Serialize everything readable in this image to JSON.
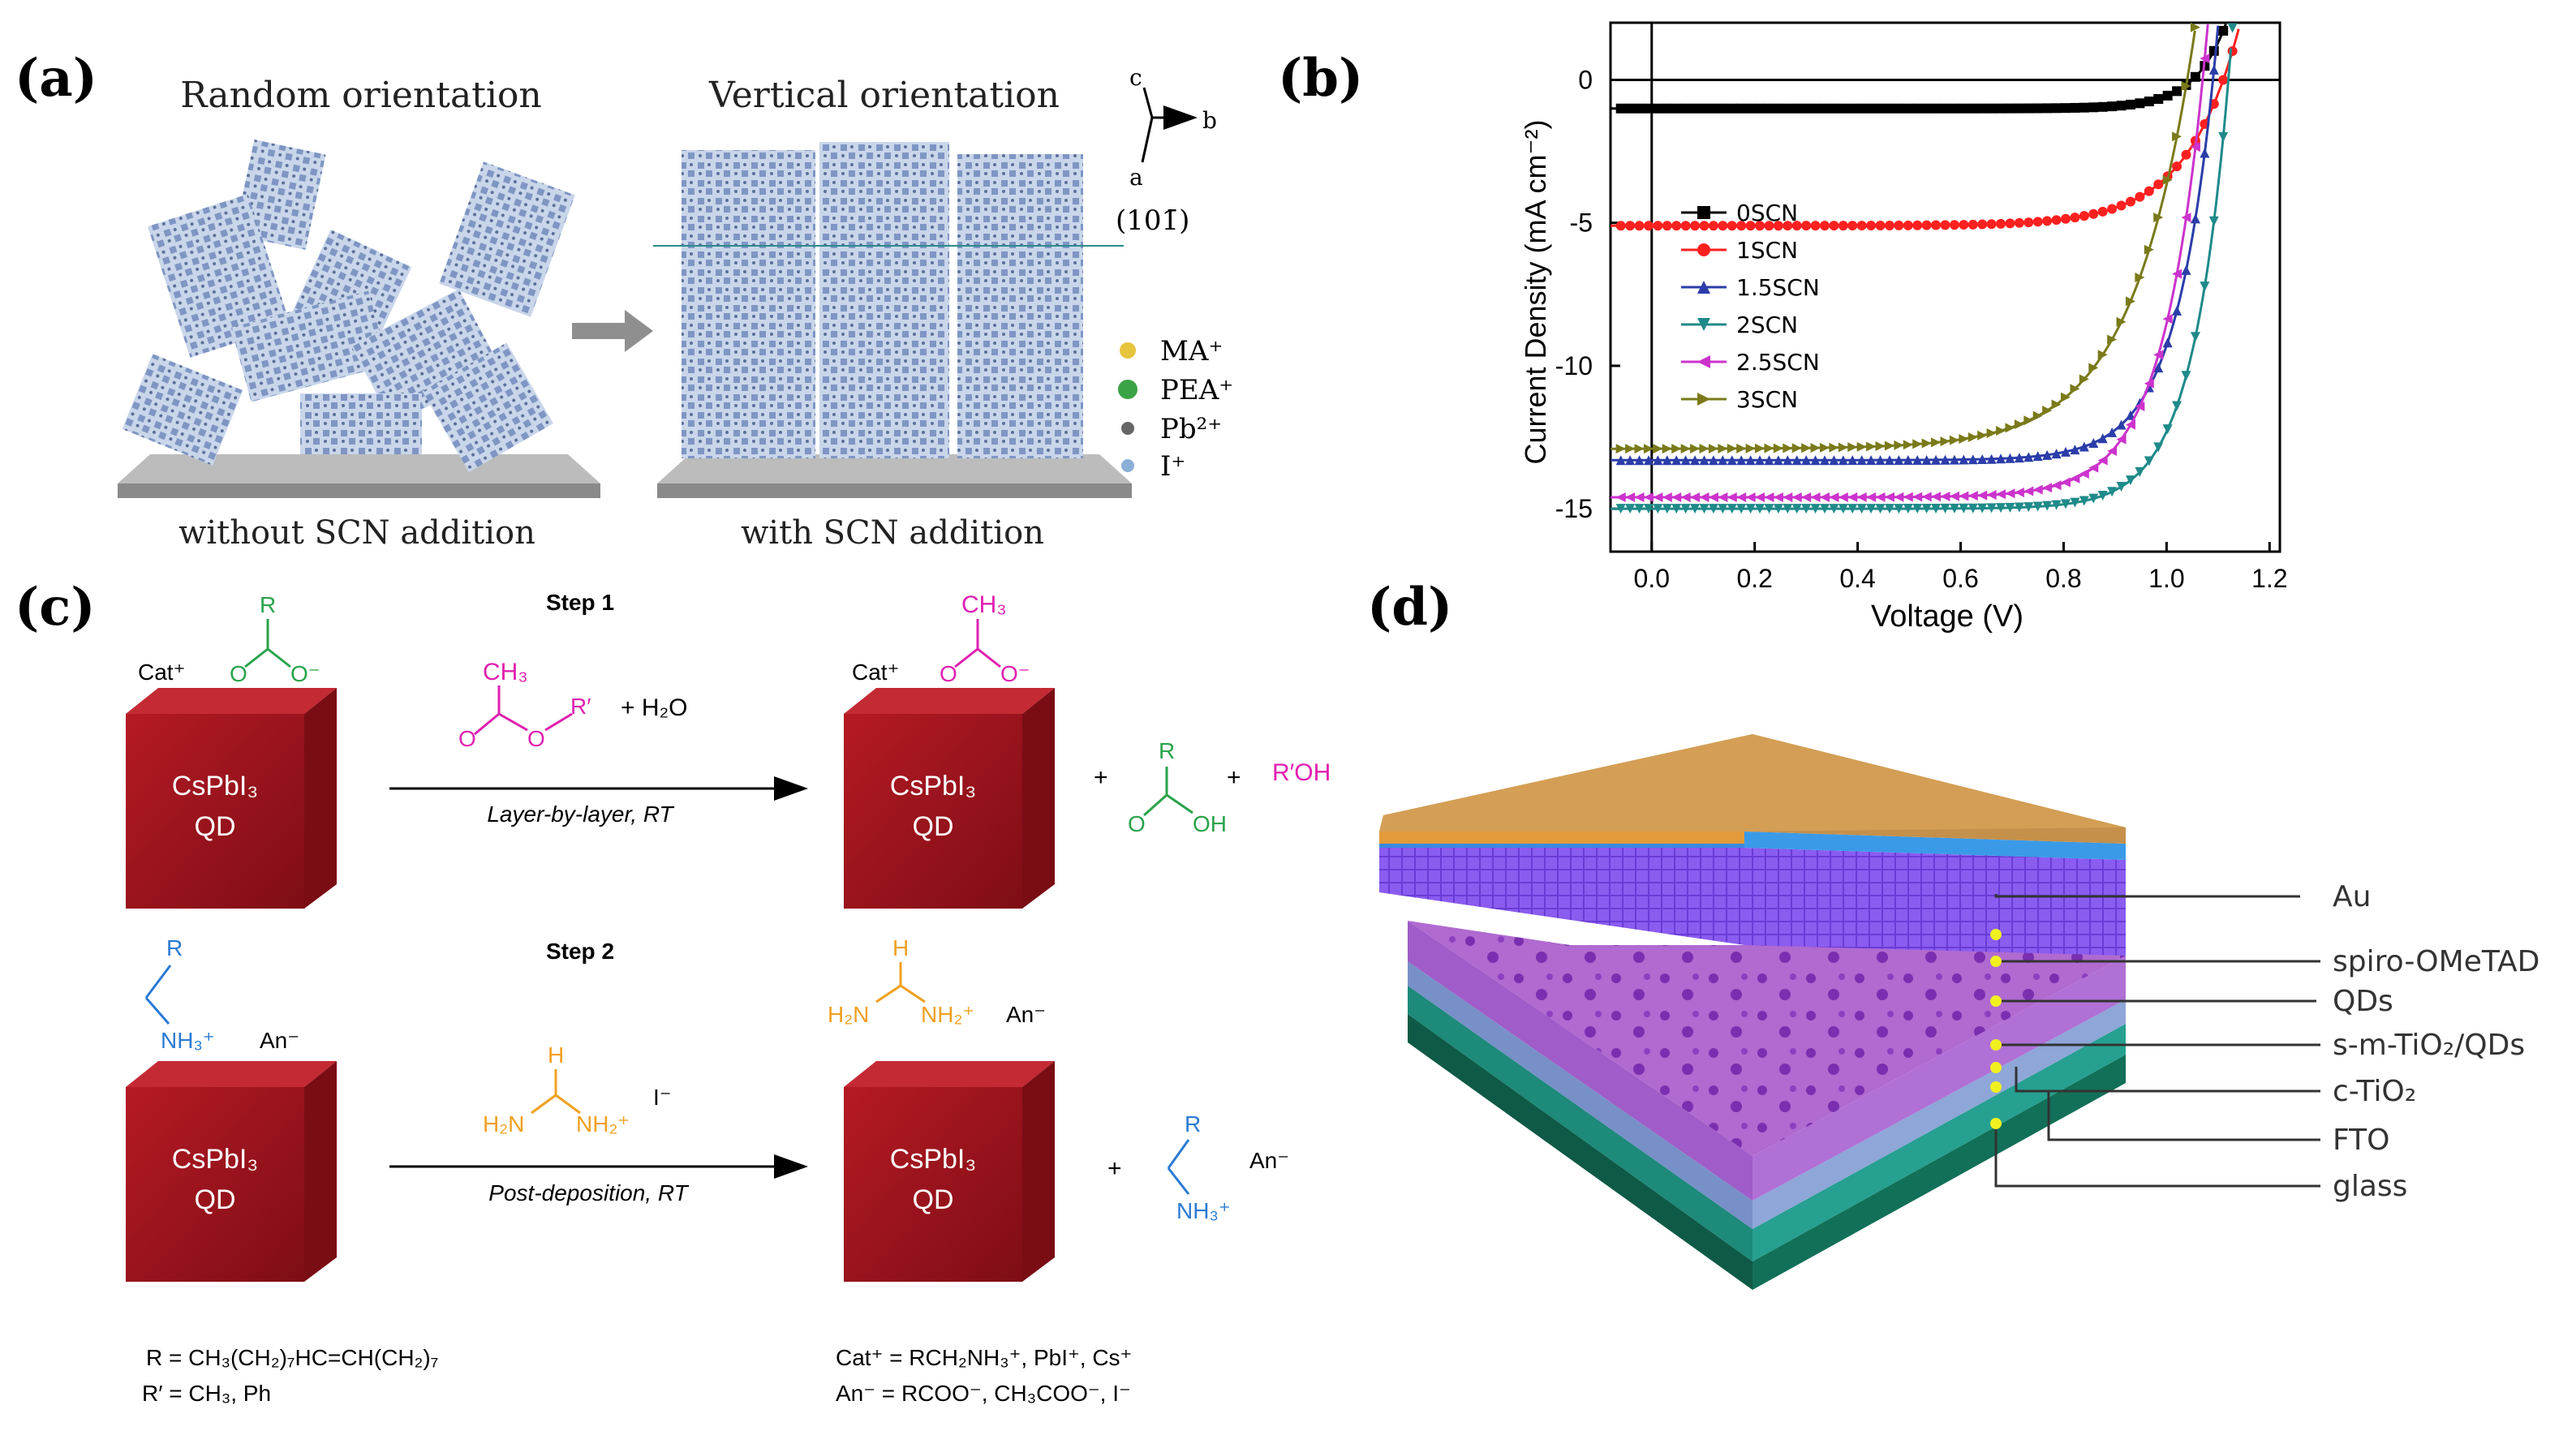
{
  "panels": {
    "a": {
      "label": "(a)",
      "left_title": "Random orientation",
      "right_title": "Vertical orientation",
      "left_caption": "without SCN addition",
      "right_caption": "with SCN addition",
      "axis_c": "c",
      "axis_b": "b",
      "axis_a": "a",
      "plane": "(101̄)",
      "legend": [
        {
          "name": "MA⁺",
          "color": "#e6c43c"
        },
        {
          "name": "PEA⁺",
          "color": "#3aa346"
        },
        {
          "name": "Pb²⁺",
          "color": "#666666"
        },
        {
          "name": "I⁺",
          "color": "#8ab0d8"
        }
      ]
    },
    "b": {
      "label": "(b)"
    },
    "c": {
      "label": "(c)",
      "step1": "Step 1",
      "step2": "Step 2",
      "cube_text1": "CsPbI₃",
      "cube_text2": "QD",
      "cat": "Cat⁺",
      "an": "An⁻",
      "r": "R",
      "rp": "R′",
      "ch3": "CH₃",
      "o": "O",
      "o_minus": "O⁻",
      "oh": "OH",
      "h2o": "+ H₂O",
      "roh": "R′OH",
      "plus": "+",
      "nh3": "NH₃⁺",
      "h": "H",
      "h2n": "H₂N",
      "nh2": "NH₂⁺",
      "iodide": "I⁻",
      "arrow1_label": "Layer-by-layer, RT",
      "arrow2_label": "Post-deposition, RT",
      "def_r": "R = CH₃(CH₂)₇HC=CH(CH₂)₇",
      "def_rp": "R′ = CH₃, Ph",
      "def_cat": "Cat⁺ = RCH₂NH₃⁺, PbI⁺, Cs⁺",
      "def_an": "An⁻ = RCOO⁻, CH₃COO⁻, I⁻"
    },
    "d": {
      "label": "(d)",
      "layers": [
        "Au",
        "spiro-OMeTAD",
        "QDs",
        "s-m-TiO₂/QDs",
        "c-TiO₂",
        "FTO",
        "glass"
      ]
    }
  },
  "chart_data": {
    "type": "line",
    "title": "",
    "xlabel": "Voltage (V)",
    "ylabel": "Current Density (mA cm⁻²)",
    "xlim": [
      -0.08,
      1.22
    ],
    "ylim": [
      -16.5,
      2.0
    ],
    "xticks": [
      "0.0",
      "0.2",
      "0.4",
      "0.6",
      "0.8",
      "1.0",
      "1.2"
    ],
    "xtick_values": [
      0.0,
      0.2,
      0.4,
      0.6,
      0.8,
      1.0,
      1.2
    ],
    "yticks": [
      "0",
      "-5",
      "-10",
      "-15"
    ],
    "ytick_values": [
      0,
      -5,
      -10,
      -15
    ],
    "legend_position": "middle-left",
    "series": [
      {
        "name": "0SCN",
        "color": "#000000",
        "marker": "square",
        "jsc": -1.0,
        "voc": 1.05,
        "n": 0.06
      },
      {
        "name": "1SCN",
        "color": "#ff2020",
        "marker": "circle",
        "jsc": -5.1,
        "voc": 1.11,
        "n": 0.1
      },
      {
        "name": "1.5SCN",
        "color": "#2b3da8",
        "marker": "triangle-up",
        "jsc": -13.3,
        "voc": 1.09,
        "n": 0.075
      },
      {
        "name": "2SCN",
        "color": "#1f8a8a",
        "marker": "triangle-down",
        "jsc": -15.0,
        "voc": 1.12,
        "n": 0.07
      },
      {
        "name": "2.5SCN",
        "color": "#cc33cc",
        "marker": "triangle-left",
        "jsc": -14.6,
        "voc": 1.07,
        "n": 0.08
      },
      {
        "name": "3SCN",
        "color": "#7a7a1a",
        "marker": "triangle-right",
        "jsc": -12.9,
        "voc": 1.04,
        "n": 0.12
      }
    ]
  }
}
